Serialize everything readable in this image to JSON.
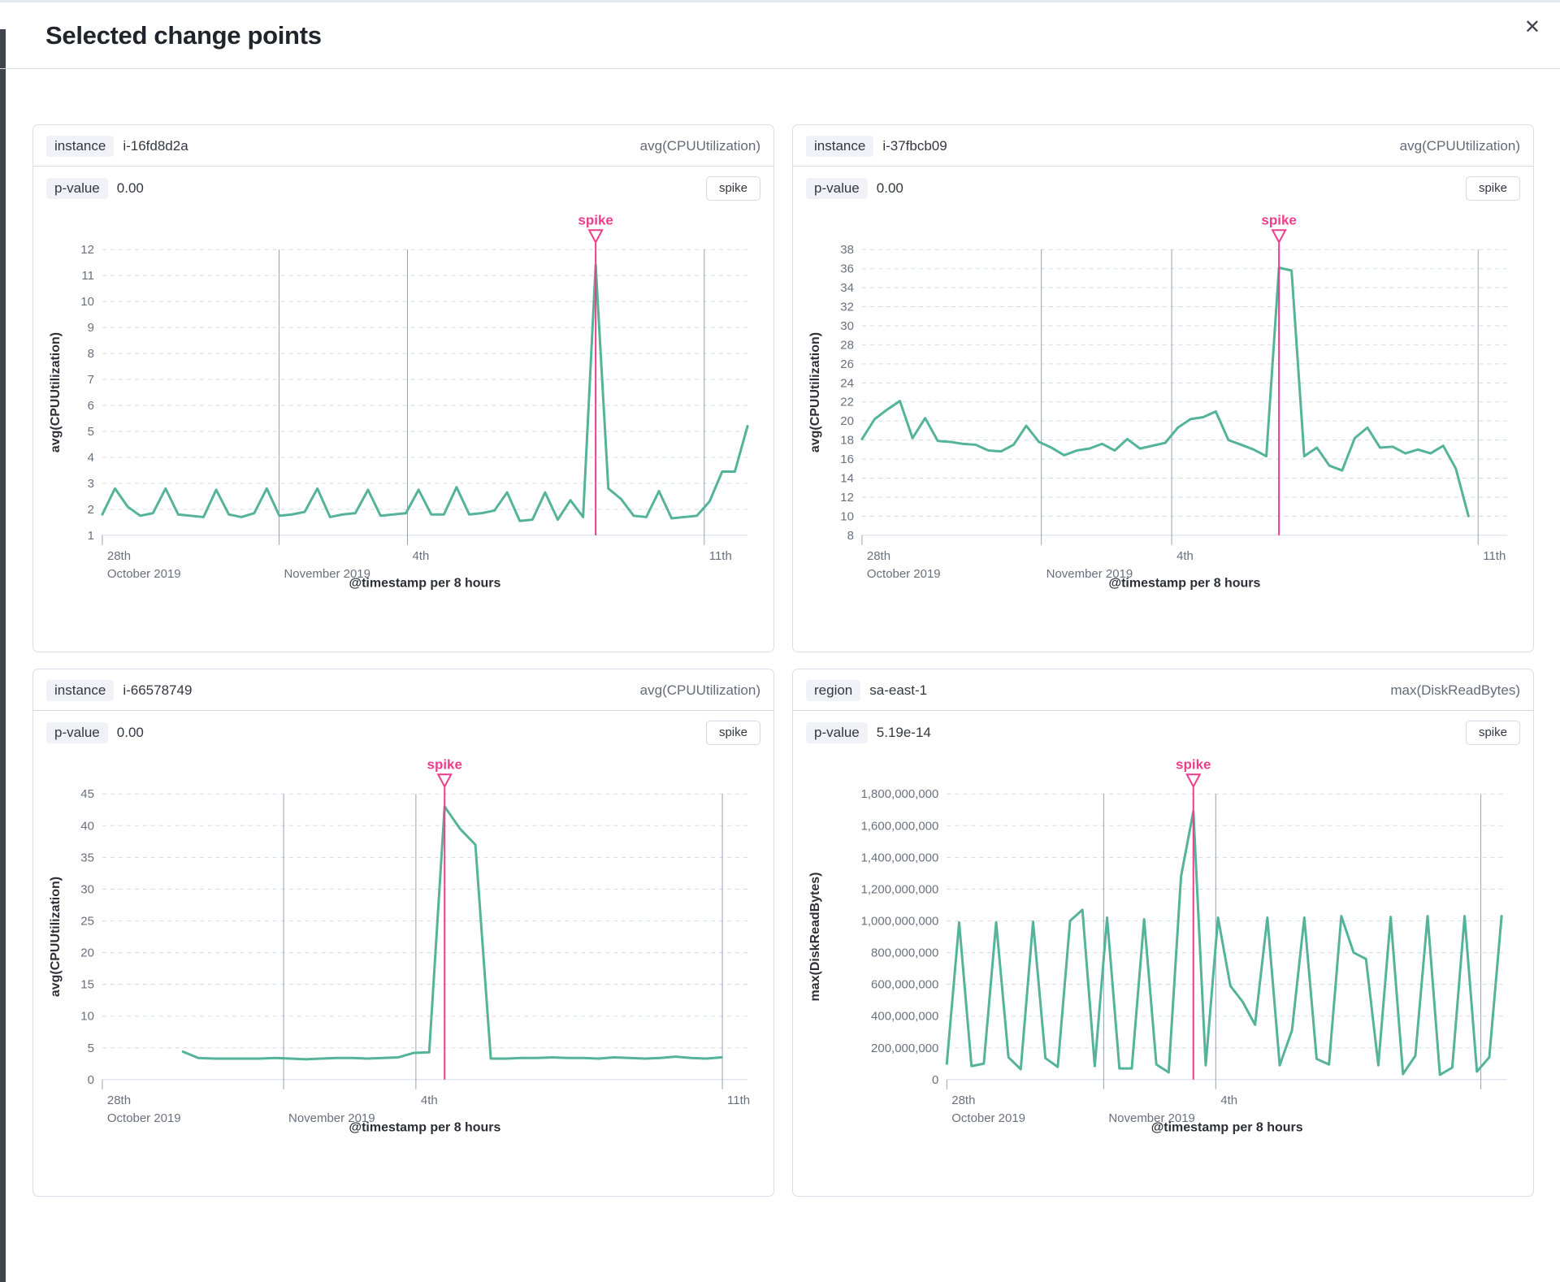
{
  "modal": {
    "title": "Selected change points",
    "close_glyph": "✕"
  },
  "colors": {
    "series": "#54B399",
    "annotation": "#EE3D8C",
    "grid": "#D3DAE6",
    "vgrid": "#98A2B3",
    "tick_text": "#69707D",
    "axis_title_text": "#2C3036"
  },
  "panels": [
    {
      "field_badge": "instance",
      "field_value": "i-16fd8d2a",
      "agg_label": "avg(CPUUtilization)",
      "p_label": "p-value",
      "p_value": "0.00",
      "change_type": "spike"
    },
    {
      "field_badge": "instance",
      "field_value": "i-37fbcb09",
      "agg_label": "avg(CPUUtilization)",
      "p_label": "p-value",
      "p_value": "0.00",
      "change_type": "spike"
    },
    {
      "field_badge": "instance",
      "field_value": "i-66578749",
      "agg_label": "avg(CPUUtilization)",
      "p_label": "p-value",
      "p_value": "0.00",
      "change_type": "spike"
    },
    {
      "field_badge": "region",
      "field_value": "sa-east-1",
      "agg_label": "max(DiskReadBytes)",
      "p_label": "p-value",
      "p_value": "5.19e-14",
      "change_type": "spike"
    }
  ],
  "chart_data": [
    {
      "type": "line",
      "ylabel": "avg(CPUUtilization)",
      "xlabel": "@timestamp per 8 hours",
      "ylim": [
        1,
        12
      ],
      "ytick_step": 1,
      "ytick_format": "plain",
      "x_range": [
        0,
        1
      ],
      "x_gridlines": [
        {
          "f": 0.0,
          "label1": "28th",
          "label2": "October 2019",
          "tick": true
        },
        {
          "f": 0.274,
          "label1": "",
          "label2": "November 2019"
        },
        {
          "f": 0.473,
          "label1": "4th",
          "label2": ""
        },
        {
          "f": 0.933,
          "label1": "11th",
          "label2": ""
        }
      ],
      "annotation": {
        "label": "spike",
        "index": 39
      },
      "values": [
        1.8,
        2.8,
        2.1,
        1.75,
        1.85,
        2.8,
        1.8,
        1.75,
        1.7,
        2.75,
        1.8,
        1.7,
        1.85,
        2.8,
        1.75,
        1.8,
        1.9,
        2.8,
        1.7,
        1.8,
        1.85,
        2.75,
        1.75,
        1.8,
        1.85,
        2.75,
        1.8,
        1.8,
        2.85,
        1.8,
        1.85,
        1.95,
        2.65,
        1.55,
        1.6,
        2.65,
        1.6,
        2.35,
        1.7,
        11.4,
        2.8,
        2.4,
        1.75,
        1.7,
        2.7,
        1.65,
        1.7,
        1.75,
        2.3,
        3.45,
        3.45,
        5.2
      ]
    },
    {
      "type": "line",
      "ylabel": "avg(CPUUtilization)",
      "xlabel": "@timestamp per 8 hours",
      "ylim": [
        8,
        38
      ],
      "ytick_step": 2,
      "ytick_format": "plain",
      "x_range": [
        0,
        0.94
      ],
      "x_gridlines": [
        {
          "f": 0.0,
          "label1": "28th",
          "label2": "October 2019",
          "tick": true
        },
        {
          "f": 0.278,
          "label1": "",
          "label2": "November 2019"
        },
        {
          "f": 0.48,
          "label1": "4th",
          "label2": ""
        },
        {
          "f": 0.955,
          "label1": "11th",
          "label2": ""
        }
      ],
      "annotation": {
        "label": "spike",
        "index": 33
      },
      "values": [
        18.1,
        20.2,
        21.2,
        22.1,
        18.2,
        20.3,
        17.9,
        17.8,
        17.6,
        17.5,
        16.9,
        16.8,
        17.5,
        19.5,
        17.8,
        17.2,
        16.4,
        16.9,
        17.1,
        17.6,
        16.9,
        18.1,
        17.1,
        17.4,
        17.7,
        19.3,
        20.2,
        20.4,
        21.0,
        18.0,
        17.5,
        17.0,
        16.3,
        36.1,
        35.8,
        16.3,
        17.2,
        15.3,
        14.8,
        18.2,
        19.3,
        17.2,
        17.3,
        16.6,
        17.0,
        16.6,
        17.4,
        15.0,
        10.0
      ]
    },
    {
      "type": "line",
      "ylabel": "avg(CPUUtilization)",
      "xlabel": "@timestamp per 8 hours",
      "ylim": [
        0,
        45
      ],
      "ytick_step": 5,
      "ytick_format": "plain",
      "x_range": [
        0.125,
        0.96
      ],
      "x_gridlines": [
        {
          "f": 0.0,
          "label1": "28th",
          "label2": "October 2019",
          "tick": true
        },
        {
          "f": 0.281,
          "label1": "",
          "label2": "November 2019"
        },
        {
          "f": 0.486,
          "label1": "4th",
          "label2": ""
        },
        {
          "f": 0.961,
          "label1": "11th",
          "label2": ""
        }
      ],
      "annotation": {
        "label": "spike",
        "index": 17
      },
      "values": [
        4.4,
        3.4,
        3.3,
        3.3,
        3.3,
        3.3,
        3.4,
        3.3,
        3.2,
        3.3,
        3.4,
        3.4,
        3.3,
        3.4,
        3.5,
        4.2,
        4.3,
        43.0,
        39.5,
        37.0,
        3.3,
        3.3,
        3.4,
        3.4,
        3.5,
        3.4,
        3.4,
        3.3,
        3.5,
        3.4,
        3.3,
        3.4,
        3.6,
        3.4,
        3.3,
        3.5
      ]
    },
    {
      "type": "line",
      "ylabel": "max(DiskReadBytes)",
      "xlabel": "@timestamp per 8 hours",
      "ylim": [
        0,
        1800000000
      ],
      "ytick_step": 200000000,
      "ytick_format": "comma",
      "x_range": [
        0,
        0.99
      ],
      "x_gridlines": [
        {
          "f": 0.0,
          "label1": "28th",
          "label2": "October 2019",
          "tick": true
        },
        {
          "f": 0.28,
          "label1": "",
          "label2": "November 2019"
        },
        {
          "f": 0.48,
          "label1": "4th",
          "label2": ""
        },
        {
          "f": 0.953,
          "label1": "",
          "label2": ""
        }
      ],
      "annotation": {
        "label": "spike",
        "index": 20
      },
      "values": [
        100000000,
        990000000,
        85000000,
        100000000,
        990000000,
        140000000,
        65000000,
        995000000,
        135000000,
        80000000,
        1000000000,
        1070000000,
        85000000,
        1020000000,
        70000000,
        70000000,
        1010000000,
        95000000,
        45000000,
        1280000000,
        1690000000,
        90000000,
        1020000000,
        590000000,
        490000000,
        345000000,
        1020000000,
        90000000,
        310000000,
        1020000000,
        130000000,
        95000000,
        1030000000,
        800000000,
        760000000,
        90000000,
        1025000000,
        35000000,
        150000000,
        1030000000,
        30000000,
        75000000,
        1030000000,
        50000000,
        140000000,
        1030000000
      ]
    }
  ]
}
